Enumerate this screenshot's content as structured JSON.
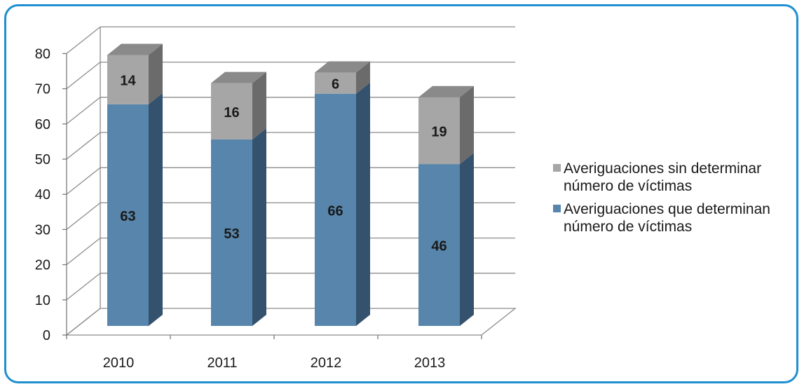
{
  "chart_data": {
    "type": "bar",
    "stacked": true,
    "three_d": true,
    "categories": [
      "2010",
      "2011",
      "2012",
      "2013"
    ],
    "series": [
      {
        "name": "Averiguaciones que determinan número de víctimas",
        "values": [
          63,
          53,
          66,
          46
        ],
        "color": "#5785ab",
        "side_color": "#34526d"
      },
      {
        "name": "Averiguaciones sin determinar número de víctimas",
        "values": [
          14,
          16,
          6,
          19
        ],
        "color": "#a6a6a6",
        "top_color": "#8a8a8a",
        "side_color": "#6b6b6b"
      }
    ],
    "y_ticks": [
      "0",
      "10",
      "20",
      "30",
      "40",
      "50",
      "60",
      "70",
      "80"
    ],
    "ylim": [
      0,
      80
    ],
    "grid": true,
    "legend_position": "right",
    "border_color": "#1f8fd0"
  }
}
